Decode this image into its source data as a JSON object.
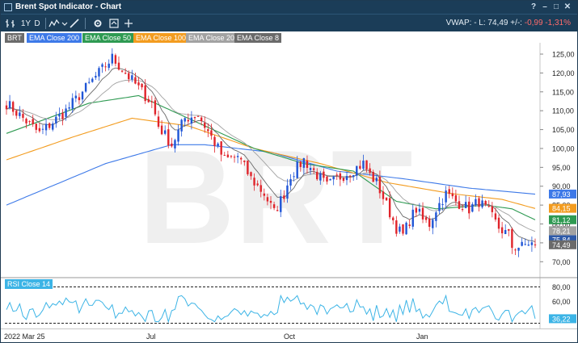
{
  "window": {
    "title": "Brent Spot Indicator - Chart"
  },
  "toolbar": {
    "period": "1Y",
    "interval": "D",
    "vwap_text": "VWAP: -   L: 74,49  +/-: ",
    "change_text": "-0,99  -1,31%"
  },
  "colors": {
    "up": "#1f55d6",
    "down": "#e0242b",
    "ema200": "#3d79e8",
    "ema50": "#2e9a52",
    "ema100": "#f39c1f",
    "ema20": "#a2a2a2",
    "ema8": "#6a6a6a",
    "rsi": "#3cb4e6",
    "rsi_tag": "#3cb4e6",
    "ticker_tag": "#6b6b6b",
    "watermark": "#efefef"
  },
  "legend": {
    "ticker": "BRT",
    "items": [
      {
        "label": "EMA Close 200",
        "color": "#3d79e8"
      },
      {
        "label": "EMA Close 50",
        "color": "#2e9a52"
      },
      {
        "label": "EMA Close 100",
        "color": "#f39c1f"
      },
      {
        "label": "EMA Close 20",
        "color": "#a2a2a2"
      },
      {
        "label": "EMA Close 8",
        "color": "#6a6a6a"
      }
    ]
  },
  "watermark": "BRT",
  "rsi": {
    "label": "RSI Close 14",
    "ticks": [
      "80,00",
      "60,00"
    ],
    "overbought": 80,
    "oversold": 30,
    "ylim": [
      25,
      85
    ],
    "current_label": "36,22",
    "current": 36.22
  },
  "x_axis": {
    "labels": [
      "2022 Mar 25",
      "Jul",
      "Oct",
      "Jan"
    ]
  },
  "chart_data": {
    "type": "candlestick",
    "ylim": [
      66,
      128
    ],
    "y_ticks": [
      {
        "v": 125,
        "label": "125,00"
      },
      {
        "v": 120,
        "label": "120,00"
      },
      {
        "v": 115,
        "label": "115,00"
      },
      {
        "v": 110,
        "label": "110,00"
      },
      {
        "v": 105,
        "label": "105,00"
      },
      {
        "v": 100,
        "label": "100,00"
      },
      {
        "v": 95,
        "label": "95,00"
      },
      {
        "v": 90,
        "label": "90,00"
      },
      {
        "v": 85,
        "label": "85,00"
      },
      {
        "v": 80,
        "label": "80,00"
      },
      {
        "v": 75,
        "label": "75,00"
      },
      {
        "v": 70,
        "label": "70,00"
      }
    ],
    "price_tags": [
      {
        "label": "87,93",
        "v": 87.93,
        "color": "#3d79e8"
      },
      {
        "label": "84,15",
        "v": 84.15,
        "color": "#f39c1f"
      },
      {
        "label": "81,12",
        "v": 81.12,
        "color": "#2e9a52"
      },
      {
        "label": "78,21",
        "v": 78.21,
        "color": "#a2a2a2"
      },
      {
        "label": "75,84",
        "v": 75.84,
        "color": "#2e5aa8"
      },
      {
        "label": "74,49",
        "v": 74.49,
        "color": "#6a6a6a"
      }
    ],
    "close_anchors": [
      [
        0,
        112
      ],
      [
        10,
        104
      ],
      [
        18,
        110
      ],
      [
        26,
        118
      ],
      [
        32,
        124
      ],
      [
        36,
        120
      ],
      [
        40,
        116
      ],
      [
        44,
        112
      ],
      [
        46,
        106
      ],
      [
        50,
        101
      ],
      [
        54,
        108
      ],
      [
        58,
        109
      ],
      [
        62,
        103
      ],
      [
        66,
        97
      ],
      [
        70,
        98
      ],
      [
        74,
        92
      ],
      [
        78,
        88
      ],
      [
        81,
        83
      ],
      [
        84,
        88
      ],
      [
        86,
        93
      ],
      [
        90,
        97
      ],
      [
        94,
        93
      ],
      [
        97,
        90
      ],
      [
        100,
        92
      ],
      [
        104,
        94
      ],
      [
        108,
        96
      ],
      [
        110,
        93
      ],
      [
        112,
        91
      ],
      [
        114,
        87
      ],
      [
        116,
        83
      ],
      [
        118,
        79
      ],
      [
        120,
        77
      ],
      [
        122,
        81
      ],
      [
        124,
        84
      ],
      [
        126,
        81
      ],
      [
        128,
        80
      ],
      [
        130,
        84
      ],
      [
        133,
        88
      ],
      [
        136,
        86
      ],
      [
        140,
        84
      ],
      [
        143,
        86
      ],
      [
        146,
        83
      ],
      [
        149,
        79
      ],
      [
        152,
        77
      ],
      [
        153,
        74
      ],
      [
        156,
        74
      ],
      [
        158,
        75
      ],
      [
        160,
        74.5
      ]
    ],
    "ema200_anchors": [
      [
        0,
        85
      ],
      [
        30,
        96
      ],
      [
        50,
        101
      ],
      [
        60,
        101
      ],
      [
        80,
        99
      ],
      [
        100,
        94
      ],
      [
        120,
        92
      ],
      [
        140,
        89.5
      ],
      [
        160,
        87.9
      ]
    ],
    "ema100_anchors": [
      [
        0,
        97
      ],
      [
        20,
        103
      ],
      [
        38,
        108
      ],
      [
        55,
        106
      ],
      [
        75,
        100
      ],
      [
        95,
        96
      ],
      [
        115,
        91
      ],
      [
        135,
        88
      ],
      [
        150,
        86.5
      ],
      [
        160,
        84.1
      ]
    ],
    "ema50_anchors": [
      [
        0,
        104
      ],
      [
        25,
        112
      ],
      [
        40,
        114
      ],
      [
        55,
        108
      ],
      [
        75,
        100
      ],
      [
        90,
        96
      ],
      [
        105,
        94
      ],
      [
        118,
        86
      ],
      [
        130,
        84
      ],
      [
        145,
        85
      ],
      [
        153,
        84
      ],
      [
        160,
        81.1
      ]
    ]
  }
}
